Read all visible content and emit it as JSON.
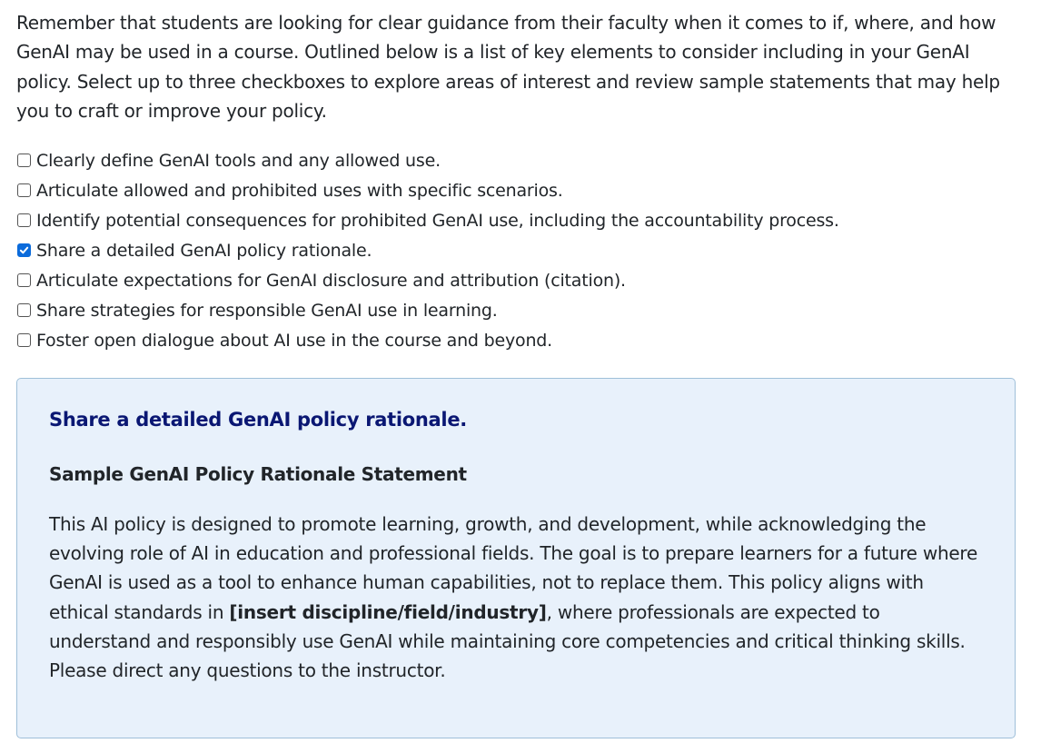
{
  "intro_text": "Remember that students are looking for clear guidance from their faculty when it comes to if, where, and how GenAI may be used in a course. Outlined below is a list of key elements to consider including in your GenAI policy. Select up to three checkboxes to explore areas of interest and review sample statements that may help you to craft or improve your policy.",
  "checklist": [
    {
      "label": "Clearly define GenAI tools and any allowed use.",
      "checked": false
    },
    {
      "label": "Articulate allowed and prohibited uses with specific scenarios.",
      "checked": false
    },
    {
      "label": "Identify potential consequences for prohibited GenAI use, including the accountability process.",
      "checked": false
    },
    {
      "label": "Share a detailed GenAI policy rationale.",
      "checked": true
    },
    {
      "label": "Articulate expectations for GenAI disclosure and attribution (citation).",
      "checked": false
    },
    {
      "label": "Share strategies for responsible GenAI use in learning.",
      "checked": false
    },
    {
      "label": "Foster open dialogue about AI use in the course and beyond.",
      "checked": false
    }
  ],
  "rationale_panel": {
    "heading": "Share a detailed GenAI policy rationale.",
    "subheading": "Sample GenAI Policy Rationale Statement",
    "body_before": "This AI policy is designed to promote learning, growth, and development, while acknowledging the evolving role of AI in education and professional fields. The goal is to prepare learners for a future where GenAI is used as a tool to enhance human capabilities, not to replace them. This policy aligns with ethical standards in ",
    "body_placeholder": "[insert discipline/field/industry]",
    "body_after": ", where professionals are expected to understand and responsibly use GenAI while maintaining core competencies and critical thinking skills. Please direct any questions to the instructor."
  },
  "colors": {
    "checkbox_checked": "#0b6bdb",
    "panel_background": "#e8f1fb",
    "panel_border": "#9fbfd9",
    "panel_heading": "#0a1773",
    "text": "#212529"
  },
  "icons": {
    "checkmark": "check-icon"
  }
}
